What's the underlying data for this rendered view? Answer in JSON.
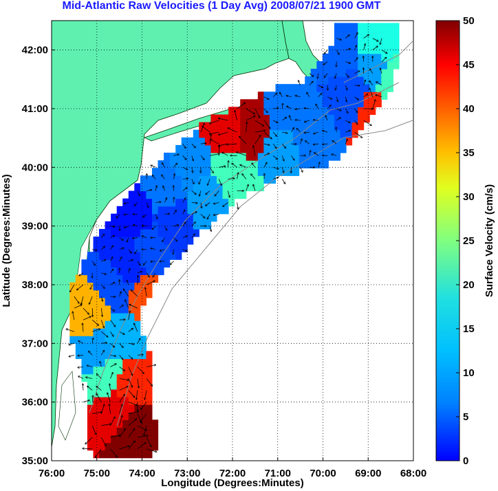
{
  "chart_data": {
    "type": "heatmap",
    "title": "Mid-Atlantic Raw Velocities (1 Day Avg) 2008/07/21 1900 GMT",
    "xlabel": "Longitude (Degrees:Minutes)",
    "ylabel": "Latitude (Degrees:Minutes)",
    "xlim": [
      -76,
      -68
    ],
    "ylim": [
      35,
      42.5
    ],
    "x_ticks": [
      {
        "value": -76,
        "label": "76:00"
      },
      {
        "value": -75,
        "label": "75:00"
      },
      {
        "value": -74,
        "label": "74:00"
      },
      {
        "value": -73,
        "label": "73:00"
      },
      {
        "value": -72,
        "label": "72:00"
      },
      {
        "value": -71,
        "label": "71:00"
      },
      {
        "value": -70,
        "label": "70:00"
      },
      {
        "value": -69,
        "label": "69:00"
      },
      {
        "value": -68,
        "label": "68:00"
      }
    ],
    "y_ticks": [
      {
        "value": 35,
        "label": "35:00"
      },
      {
        "value": 36,
        "label": "36:00"
      },
      {
        "value": 37,
        "label": "37:00"
      },
      {
        "value": 38,
        "label": "38:00"
      },
      {
        "value": 39,
        "label": "39:00"
      },
      {
        "value": 40,
        "label": "40:00"
      },
      {
        "value": 41,
        "label": "41:00"
      },
      {
        "value": 42,
        "label": "42:00"
      }
    ],
    "grid": true,
    "grid_style": "dotted",
    "colorbar": {
      "label": "Surface Velocity (cm/s)",
      "range": [
        0,
        50
      ],
      "ticks": [
        {
          "value": 0,
          "label": "0"
        },
        {
          "value": 5,
          "label": "5"
        },
        {
          "value": 10,
          "label": "10"
        },
        {
          "value": 15,
          "label": "15"
        },
        {
          "value": 20,
          "label": "20"
        },
        {
          "value": 25,
          "label": "25"
        },
        {
          "value": 30,
          "label": "30"
        },
        {
          "value": 35,
          "label": "35"
        },
        {
          "value": 40,
          "label": "40"
        },
        {
          "value": 45,
          "label": "45"
        },
        {
          "value": 50,
          "label": "50"
        }
      ],
      "colormap": "jet"
    },
    "land_color": "#5ff0b0",
    "velocity_field": [
      {
        "lon": -74.3,
        "lat": 35.5,
        "speed": 50
      },
      {
        "lon": -74.6,
        "lat": 35.8,
        "speed": 45
      },
      {
        "lon": -74.4,
        "lat": 36.2,
        "speed": 42
      },
      {
        "lon": -74.8,
        "lat": 36.4,
        "speed": 22
      },
      {
        "lon": -75.0,
        "lat": 36.8,
        "speed": 14
      },
      {
        "lon": -74.6,
        "lat": 37.0,
        "speed": 15
      },
      {
        "lon": -75.1,
        "lat": 37.5,
        "speed": 35
      },
      {
        "lon": -74.7,
        "lat": 37.9,
        "speed": 10
      },
      {
        "lon": -73.9,
        "lat": 37.7,
        "speed": 40
      },
      {
        "lon": -74.4,
        "lat": 38.3,
        "speed": 8
      },
      {
        "lon": -73.9,
        "lat": 38.6,
        "speed": 10
      },
      {
        "lon": -73.4,
        "lat": 39.0,
        "speed": 9
      },
      {
        "lon": -74.2,
        "lat": 39.1,
        "speed": 7
      },
      {
        "lon": -73.6,
        "lat": 39.6,
        "speed": 12
      },
      {
        "lon": -72.6,
        "lat": 39.4,
        "speed": 14
      },
      {
        "lon": -72.1,
        "lat": 39.8,
        "speed": 22
      },
      {
        "lon": -73.0,
        "lat": 40.0,
        "speed": 13
      },
      {
        "lon": -72.2,
        "lat": 40.6,
        "speed": 45
      },
      {
        "lon": -71.6,
        "lat": 40.6,
        "speed": 48
      },
      {
        "lon": -71.0,
        "lat": 40.3,
        "speed": 14
      },
      {
        "lon": -70.4,
        "lat": 40.5,
        "speed": 12
      },
      {
        "lon": -70.9,
        "lat": 40.9,
        "speed": 12
      },
      {
        "lon": -69.4,
        "lat": 41.2,
        "speed": 10
      },
      {
        "lon": -69.0,
        "lat": 41.6,
        "speed": 14
      },
      {
        "lon": -69.6,
        "lat": 41.9,
        "speed": 11
      },
      {
        "lon": -68.9,
        "lat": 42.1,
        "speed": 20
      },
      {
        "lon": -68.6,
        "lat": 41.3,
        "speed": 22
      },
      {
        "lon": -68.9,
        "lat": 40.95,
        "speed": 42
      }
    ]
  }
}
